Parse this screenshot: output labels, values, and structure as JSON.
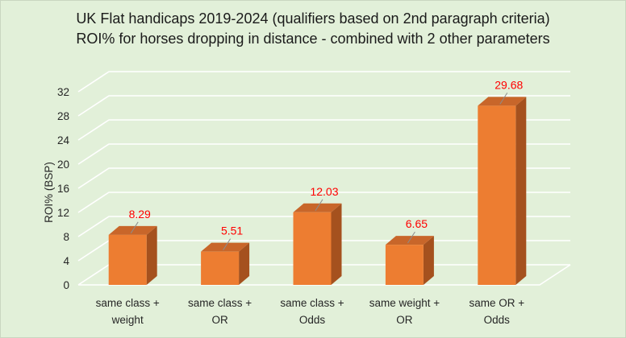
{
  "chart_data": {
    "type": "bar",
    "title": "UK Flat handicaps 2019-2024 (qualifiers based on 2nd paragraph criteria)",
    "subtitle": "ROI% for horses dropping in distance - combined with 2 other parameters",
    "ylabel": "ROI% (BSP)",
    "xlabel": "",
    "ylim": [
      0,
      32
    ],
    "y_ticks": [
      0,
      4,
      8,
      12,
      16,
      20,
      24,
      28,
      32
    ],
    "categories": [
      [
        "same class +",
        "weight"
      ],
      [
        "same class +",
        "OR"
      ],
      [
        "same class +",
        "Odds"
      ],
      [
        "same weight +",
        "OR"
      ],
      [
        "same OR +",
        "Odds"
      ]
    ],
    "values": [
      8.29,
      5.51,
      12.03,
      6.65,
      29.68
    ],
    "value_labels": [
      "8.29",
      "5.51",
      "12.03",
      "6.65",
      "29.68"
    ],
    "bar_style": "3d",
    "grid": true,
    "legend": "none",
    "colors": {
      "background": "#e2f0d9",
      "bar_front": "#ed7d31",
      "bar_side": "#a5511e",
      "bar_top": "#c8662a",
      "data_label": "#ff0000",
      "gridline": "#ffffff"
    }
  }
}
